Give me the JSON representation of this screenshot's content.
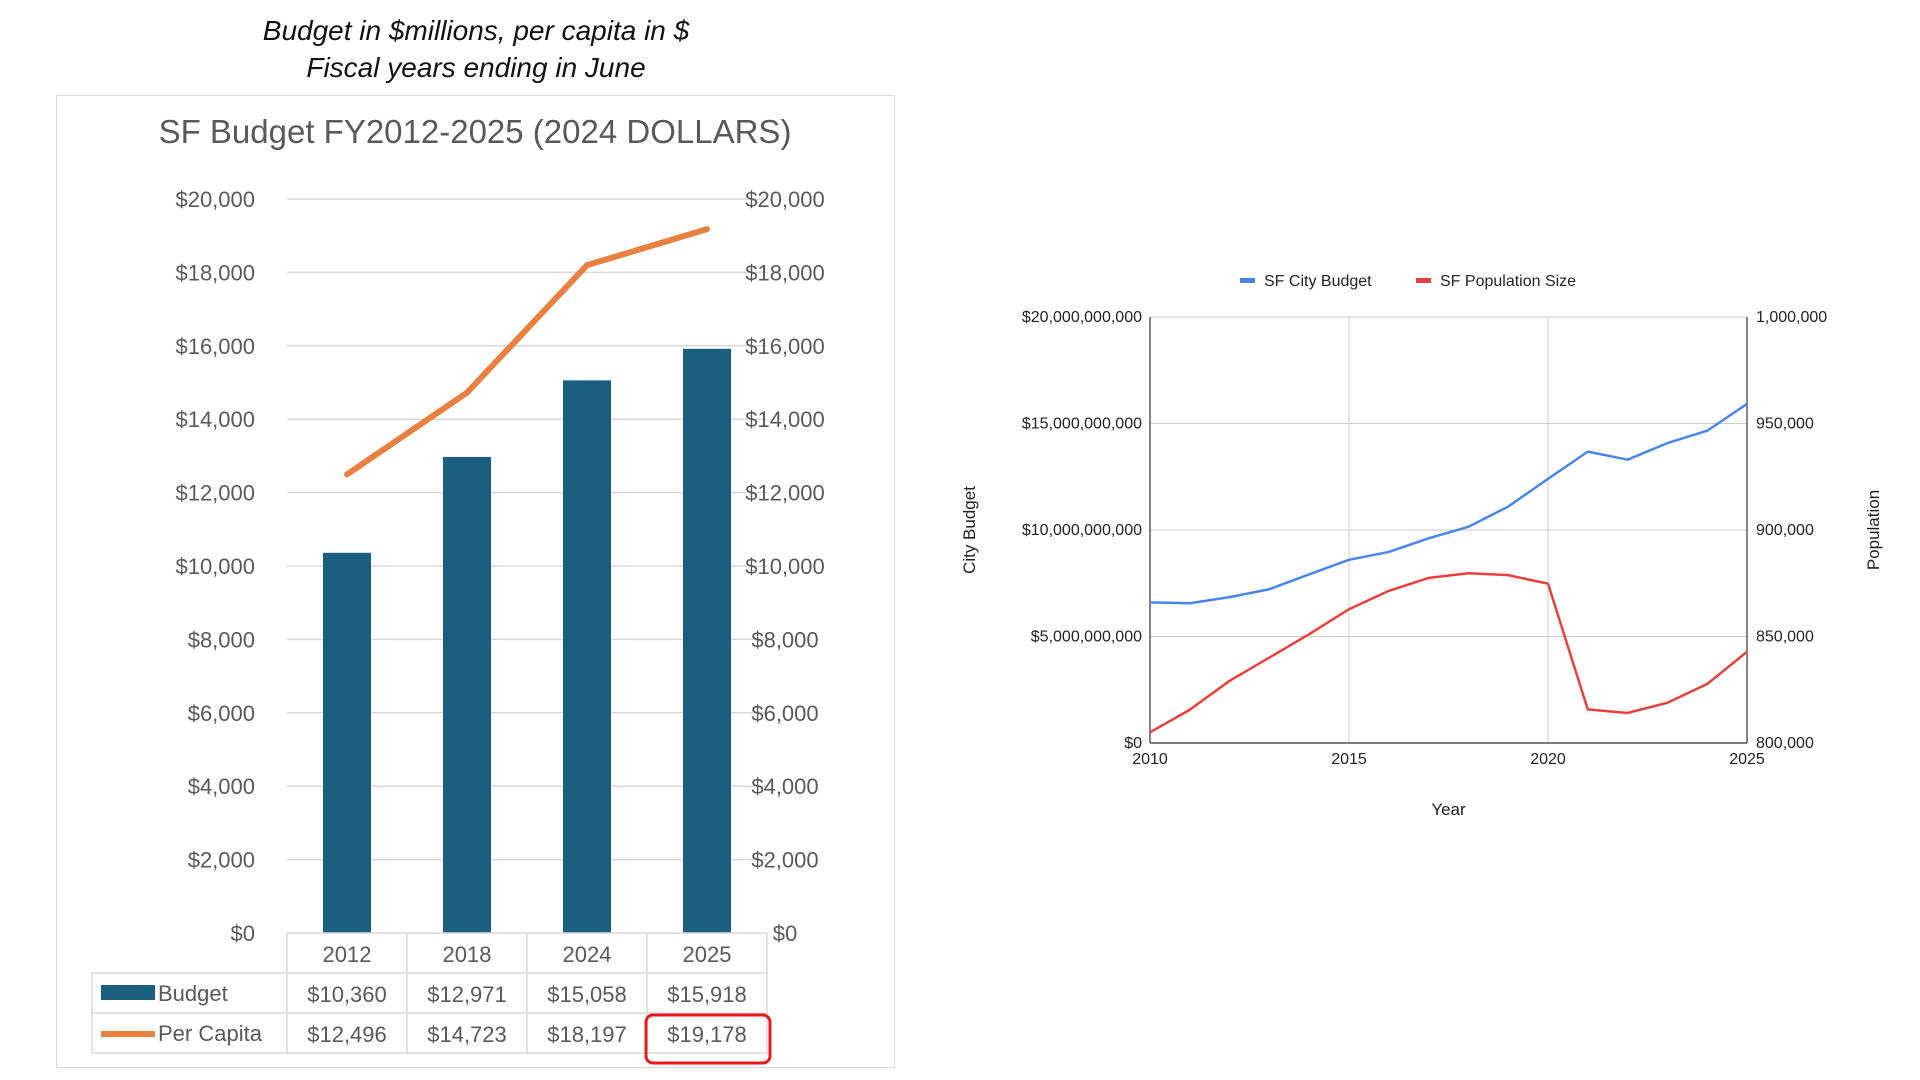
{
  "caption": {
    "line1": "Budget in $millions, per capita in $",
    "line2": "Fiscal years ending in June"
  },
  "chart_data": [
    {
      "type": "bar",
      "title": "SF Budget FY2012-2025 (2024 DOLLARS)",
      "categories": [
        "2012",
        "2018",
        "2024",
        "2025"
      ],
      "ylim": [
        0,
        20000
      ],
      "yticks": [
        "$0",
        "$2,000",
        "$4,000",
        "$6,000",
        "$8,000",
        "$10,000",
        "$12,000",
        "$14,000",
        "$16,000",
        "$18,000",
        "$20,000"
      ],
      "y2ticks": [
        "$0",
        "$2,000",
        "$4,000",
        "$6,000",
        "$8,000",
        "$10,000",
        "$12,000",
        "$14,000",
        "$16,000",
        "$18,000",
        "$20,000"
      ],
      "grid": true,
      "series": [
        {
          "name": "Budget",
          "kind": "bar",
          "color": "#1a5e80",
          "values": [
            10360,
            12971,
            15058,
            15918
          ],
          "labels": [
            "$10,360",
            "$12,971",
            "$15,058",
            "$15,918"
          ]
        },
        {
          "name": "Per Capita",
          "kind": "line",
          "color": "#e8803f",
          "values": [
            12496,
            14723,
            18197,
            19178
          ],
          "labels": [
            "$12,496",
            "$14,723",
            "$18,197",
            "$19,178"
          ]
        }
      ],
      "data_table": true,
      "highlighted_cell": {
        "series": "Per Capita",
        "category": "2025",
        "color": "#e8191d"
      }
    },
    {
      "type": "line",
      "title": "",
      "xlabel": "Year",
      "ylabel": "City Budget",
      "y2label": "Population",
      "legend": "top",
      "grid": true,
      "xlim": [
        2010,
        2025
      ],
      "ylim": [
        0,
        20000000000
      ],
      "y2lim": [
        800000,
        1000000
      ],
      "xticks": [
        "2010",
        "2015",
        "2020",
        "2025"
      ],
      "yticks": [
        "$0",
        "$5,000,000,000",
        "$10,000,000,000",
        "$15,000,000,000",
        "$20,000,000,000"
      ],
      "y2ticks": [
        "800,000",
        "850,000",
        "900,000",
        "950,000",
        "1,000,000"
      ],
      "x": [
        2010,
        2011,
        2012,
        2013,
        2014,
        2015,
        2016,
        2017,
        2018,
        2019,
        2020,
        2021,
        2022,
        2023,
        2024,
        2025
      ],
      "series": [
        {
          "name": "SF City Budget",
          "axis": "left",
          "color": "#4a86e8",
          "values": [
            6600000000,
            6560000000,
            6850000000,
            7220000000,
            7920000000,
            8600000000,
            8970000000,
            9610000000,
            10150000000,
            11100000000,
            12400000000,
            13680000000,
            13300000000,
            14080000000,
            14660000000,
            15920000000
          ]
        },
        {
          "name": "SF Population Size",
          "axis": "right",
          "color": "#e8413c",
          "values": [
            805000,
            815600,
            829200,
            840100,
            851100,
            862800,
            871400,
            877500,
            879700,
            878800,
            874800,
            815800,
            814100,
            818900,
            827700,
            842800
          ]
        }
      ]
    }
  ]
}
